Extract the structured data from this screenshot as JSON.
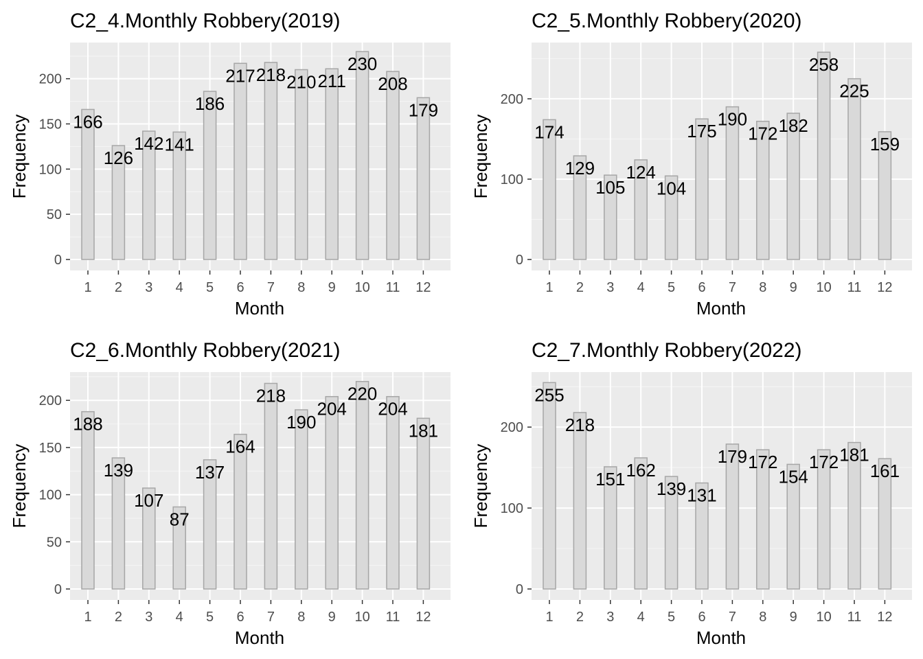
{
  "chart_data": [
    {
      "type": "bar",
      "title": "C2_4.Monthly Robbery(2019)",
      "xlabel": "Month",
      "ylabel": "Frequency",
      "categories": [
        "1",
        "2",
        "3",
        "4",
        "5",
        "6",
        "7",
        "8",
        "9",
        "10",
        "11",
        "12"
      ],
      "values": [
        166,
        126,
        142,
        141,
        186,
        217,
        218,
        210,
        211,
        230,
        208,
        179
      ],
      "ylim": [
        0,
        240
      ],
      "yticks": [
        0,
        50,
        100,
        150,
        200
      ],
      "grid": true
    },
    {
      "type": "bar",
      "title": "C2_5.Monthly Robbery(2020)",
      "xlabel": "Month",
      "ylabel": "Frequency",
      "categories": [
        "1",
        "2",
        "3",
        "4",
        "5",
        "6",
        "7",
        "8",
        "9",
        "10",
        "11",
        "12"
      ],
      "values": [
        174,
        129,
        105,
        124,
        104,
        175,
        190,
        172,
        182,
        258,
        225,
        159
      ],
      "ylim": [
        0,
        270
      ],
      "yticks": [
        0,
        100,
        200
      ],
      "grid": true
    },
    {
      "type": "bar",
      "title": "C2_6.Monthly Robbery(2021)",
      "xlabel": "Month",
      "ylabel": "Frequency",
      "categories": [
        "1",
        "2",
        "3",
        "4",
        "5",
        "6",
        "7",
        "8",
        "9",
        "10",
        "11",
        "12"
      ],
      "values": [
        188,
        139,
        107,
        87,
        137,
        164,
        218,
        190,
        204,
        220,
        204,
        181
      ],
      "ylim": [
        0,
        230
      ],
      "yticks": [
        0,
        50,
        100,
        150,
        200
      ],
      "grid": true
    },
    {
      "type": "bar",
      "title": "C2_7.Monthly Robbery(2022)",
      "xlabel": "Month",
      "ylabel": "Frequency",
      "categories": [
        "1",
        "2",
        "3",
        "4",
        "5",
        "6",
        "7",
        "8",
        "9",
        "10",
        "11",
        "12"
      ],
      "values": [
        255,
        218,
        151,
        162,
        139,
        131,
        179,
        172,
        154,
        172,
        181,
        161
      ],
      "ylim": [
        0,
        268
      ],
      "yticks": [
        0,
        100,
        200
      ],
      "grid": true
    }
  ],
  "colors": {
    "panel_background": "#ebebeb",
    "grid_major": "#ffffff",
    "bar_fill": "#d9d9d9",
    "bar_stroke": "#a6a6a6",
    "tick_text": "#4d4d4d",
    "text": "#000000"
  }
}
